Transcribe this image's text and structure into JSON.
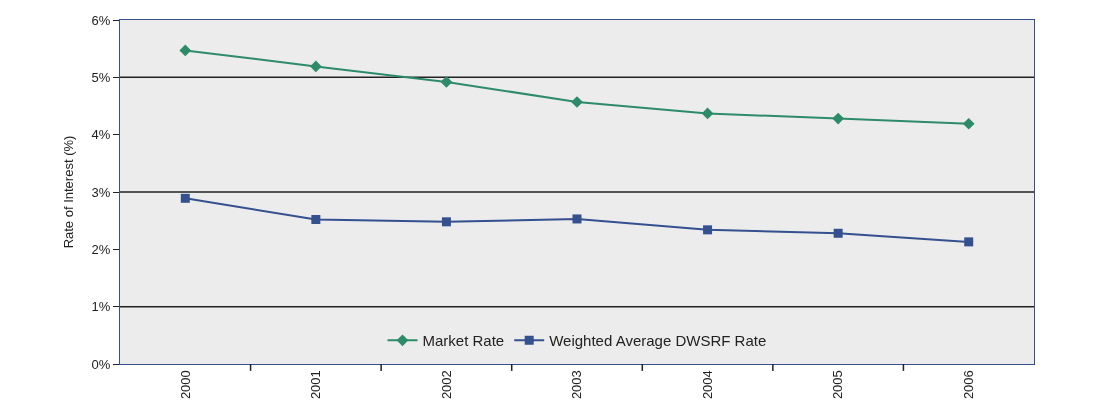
{
  "chart_data": {
    "type": "line",
    "ylabel": "Rate of Interest (%)",
    "categories": [
      "2000",
      "2001",
      "2002",
      "2003",
      "2004",
      "2005",
      "2006"
    ],
    "series": [
      {
        "name": "Market Rate",
        "color": "#2e8b6a",
        "marker": "diamond",
        "values": [
          5.47,
          5.19,
          4.92,
          4.57,
          4.37,
          4.28,
          4.19
        ]
      },
      {
        "name": "Weighted Average DWSRF Rate",
        "color": "#34508f",
        "marker": "square",
        "values": [
          2.89,
          2.52,
          2.48,
          2.53,
          2.34,
          2.28,
          2.13
        ]
      }
    ],
    "ylim": [
      0,
      6
    ],
    "yticks": [
      {
        "value": 0,
        "label": "0%"
      },
      {
        "value": 1,
        "label": "1%"
      },
      {
        "value": 2,
        "label": "2%"
      },
      {
        "value": 3,
        "label": "3%"
      },
      {
        "value": 4,
        "label": "4%"
      },
      {
        "value": 5,
        "label": "5%"
      },
      {
        "value": 6,
        "label": "6%"
      }
    ],
    "ref_lines": [
      {
        "axis": "y",
        "value": 1,
        "color": "#222222"
      },
      {
        "axis": "y",
        "value": 3,
        "color": "#222222"
      },
      {
        "axis": "y",
        "value": 5,
        "color": "#222222"
      }
    ],
    "grid": false,
    "legend": "bottom",
    "line_style": "solid"
  }
}
